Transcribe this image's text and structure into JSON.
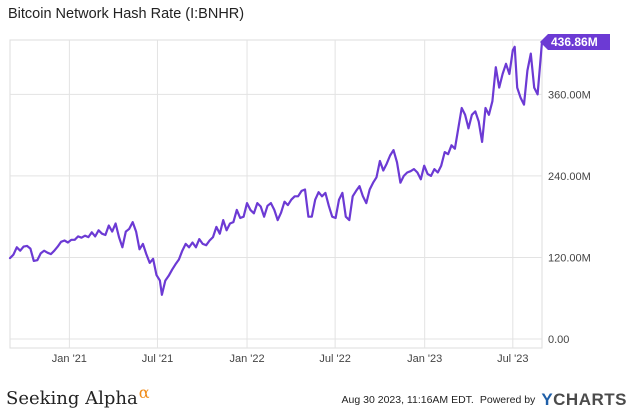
{
  "chart_data": {
    "type": "line",
    "title": "Bitcoin Network Hash Rate (I:BNHR)",
    "xlabel": "",
    "ylabel": "",
    "x_start": "2020-09-01",
    "x_end": "2023-08-30",
    "xticks": [
      {
        "date": "2021-01-01",
        "label": "Jan '21"
      },
      {
        "date": "2021-07-01",
        "label": "Jul '21"
      },
      {
        "date": "2022-01-01",
        "label": "Jan '22"
      },
      {
        "date": "2022-07-01",
        "label": "Jul '22"
      },
      {
        "date": "2023-01-01",
        "label": "Jan '23"
      },
      {
        "date": "2023-07-01",
        "label": "Jul '23"
      }
    ],
    "yticks": [
      {
        "value": 0,
        "label": "0.00"
      },
      {
        "value": 120,
        "label": "120.00M"
      },
      {
        "value": 240,
        "label": "240.00M"
      },
      {
        "value": 360,
        "label": "360.00M"
      }
    ],
    "ylim": [
      0,
      440
    ],
    "grid": true,
    "line_color": "#6c3ad4",
    "last_value_label": "436.86M",
    "series": [
      {
        "points": [
          [
            "2020-09-01",
            119
          ],
          [
            "2020-09-08",
            124
          ],
          [
            "2020-09-15",
            135
          ],
          [
            "2020-09-22",
            130
          ],
          [
            "2020-09-29",
            136
          ],
          [
            "2020-10-06",
            137
          ],
          [
            "2020-10-13",
            133
          ],
          [
            "2020-10-20",
            115
          ],
          [
            "2020-10-27",
            116
          ],
          [
            "2020-11-03",
            126
          ],
          [
            "2020-11-10",
            130
          ],
          [
            "2020-11-17",
            127
          ],
          [
            "2020-11-24",
            125
          ],
          [
            "2020-12-01",
            130
          ],
          [
            "2020-12-08",
            136
          ],
          [
            "2020-12-15",
            143
          ],
          [
            "2020-12-22",
            145
          ],
          [
            "2020-12-29",
            142
          ],
          [
            "2021-01-05",
            146
          ],
          [
            "2021-01-12",
            146
          ],
          [
            "2021-01-19",
            151
          ],
          [
            "2021-01-26",
            149
          ],
          [
            "2021-02-02",
            152
          ],
          [
            "2021-02-09",
            150
          ],
          [
            "2021-02-16",
            157
          ],
          [
            "2021-02-23",
            151
          ],
          [
            "2021-03-02",
            160
          ],
          [
            "2021-03-09",
            155
          ],
          [
            "2021-03-16",
            153
          ],
          [
            "2021-03-23",
            167
          ],
          [
            "2021-03-30",
            158
          ],
          [
            "2021-04-06",
            170
          ],
          [
            "2021-04-13",
            150
          ],
          [
            "2021-04-20",
            135
          ],
          [
            "2021-04-27",
            158
          ],
          [
            "2021-05-04",
            162
          ],
          [
            "2021-05-11",
            172
          ],
          [
            "2021-05-18",
            158
          ],
          [
            "2021-05-25",
            132
          ],
          [
            "2021-06-01",
            140
          ],
          [
            "2021-06-08",
            125
          ],
          [
            "2021-06-15",
            112
          ],
          [
            "2021-06-22",
            118
          ],
          [
            "2021-06-29",
            94
          ],
          [
            "2021-07-06",
            86
          ],
          [
            "2021-07-10",
            65
          ],
          [
            "2021-07-17",
            86
          ],
          [
            "2021-07-24",
            93
          ],
          [
            "2021-07-31",
            102
          ],
          [
            "2021-08-07",
            110
          ],
          [
            "2021-08-14",
            117
          ],
          [
            "2021-08-21",
            130
          ],
          [
            "2021-08-28",
            140
          ],
          [
            "2021-09-04",
            135
          ],
          [
            "2021-09-11",
            142
          ],
          [
            "2021-09-18",
            135
          ],
          [
            "2021-09-25",
            147
          ],
          [
            "2021-10-02",
            140
          ],
          [
            "2021-10-09",
            138
          ],
          [
            "2021-10-16",
            145
          ],
          [
            "2021-10-23",
            150
          ],
          [
            "2021-10-30",
            165
          ],
          [
            "2021-11-06",
            155
          ],
          [
            "2021-11-13",
            175
          ],
          [
            "2021-11-20",
            160
          ],
          [
            "2021-11-27",
            170
          ],
          [
            "2021-12-04",
            172
          ],
          [
            "2021-12-11",
            190
          ],
          [
            "2021-12-18",
            178
          ],
          [
            "2021-12-25",
            180
          ],
          [
            "2022-01-01",
            200
          ],
          [
            "2022-01-08",
            190
          ],
          [
            "2022-01-15",
            185
          ],
          [
            "2022-01-22",
            200
          ],
          [
            "2022-01-29",
            195
          ],
          [
            "2022-02-05",
            180
          ],
          [
            "2022-02-12",
            196
          ],
          [
            "2022-02-19",
            200
          ],
          [
            "2022-02-26",
            190
          ],
          [
            "2022-03-05",
            175
          ],
          [
            "2022-03-12",
            186
          ],
          [
            "2022-03-19",
            202
          ],
          [
            "2022-03-26",
            197
          ],
          [
            "2022-04-02",
            205
          ],
          [
            "2022-04-09",
            210
          ],
          [
            "2022-04-16",
            210
          ],
          [
            "2022-04-23",
            218
          ],
          [
            "2022-04-30",
            220
          ],
          [
            "2022-05-07",
            180
          ],
          [
            "2022-05-14",
            180
          ],
          [
            "2022-05-21",
            205
          ],
          [
            "2022-05-28",
            216
          ],
          [
            "2022-06-04",
            210
          ],
          [
            "2022-06-11",
            215
          ],
          [
            "2022-06-18",
            196
          ],
          [
            "2022-06-25",
            180
          ],
          [
            "2022-07-02",
            178
          ],
          [
            "2022-07-09",
            205
          ],
          [
            "2022-07-16",
            215
          ],
          [
            "2022-07-23",
            180
          ],
          [
            "2022-07-30",
            175
          ],
          [
            "2022-08-06",
            210
          ],
          [
            "2022-08-13",
            218
          ],
          [
            "2022-08-20",
            225
          ],
          [
            "2022-08-27",
            210
          ],
          [
            "2022-09-03",
            200
          ],
          [
            "2022-09-10",
            220
          ],
          [
            "2022-09-17",
            230
          ],
          [
            "2022-09-24",
            238
          ],
          [
            "2022-10-01",
            262
          ],
          [
            "2022-10-08",
            248
          ],
          [
            "2022-10-15",
            258
          ],
          [
            "2022-10-22",
            270
          ],
          [
            "2022-10-29",
            278
          ],
          [
            "2022-11-05",
            260
          ],
          [
            "2022-11-12",
            230
          ],
          [
            "2022-11-19",
            240
          ],
          [
            "2022-11-26",
            245
          ],
          [
            "2022-12-03",
            247
          ],
          [
            "2022-12-10",
            250
          ],
          [
            "2022-12-17",
            245
          ],
          [
            "2022-12-24",
            235
          ],
          [
            "2022-12-31",
            255
          ],
          [
            "2023-01-07",
            243
          ],
          [
            "2023-01-14",
            240
          ],
          [
            "2023-01-21",
            250
          ],
          [
            "2023-01-28",
            245
          ],
          [
            "2023-02-04",
            255
          ],
          [
            "2023-02-11",
            275
          ],
          [
            "2023-02-18",
            272
          ],
          [
            "2023-02-25",
            285
          ],
          [
            "2023-03-04",
            280
          ],
          [
            "2023-03-11",
            310
          ],
          [
            "2023-03-18",
            340
          ],
          [
            "2023-03-25",
            330
          ],
          [
            "2023-04-01",
            310
          ],
          [
            "2023-04-08",
            330
          ],
          [
            "2023-04-15",
            335
          ],
          [
            "2023-04-22",
            320
          ],
          [
            "2023-04-29",
            290
          ],
          [
            "2023-05-06",
            340
          ],
          [
            "2023-05-13",
            330
          ],
          [
            "2023-05-20",
            350
          ],
          [
            "2023-05-27",
            400
          ],
          [
            "2023-06-03",
            370
          ],
          [
            "2023-06-10",
            390
          ],
          [
            "2023-06-17",
            405
          ],
          [
            "2023-06-24",
            390
          ],
          [
            "2023-07-01",
            425
          ],
          [
            "2023-07-05",
            430
          ],
          [
            "2023-07-10",
            370
          ],
          [
            "2023-07-17",
            355
          ],
          [
            "2023-07-24",
            345
          ],
          [
            "2023-07-31",
            395
          ],
          [
            "2023-08-07",
            420
          ],
          [
            "2023-08-14",
            370
          ],
          [
            "2023-08-21",
            360
          ],
          [
            "2023-08-30",
            437
          ]
        ]
      }
    ]
  },
  "footer": {
    "brand": "Seeking Alpha",
    "brand_alpha": "α",
    "timestamp": "Aug 30 2023, 11:16AM EDT.",
    "powered_by": "Powered by",
    "ycharts_y": "Y",
    "ycharts_rest": "CHARTS"
  }
}
